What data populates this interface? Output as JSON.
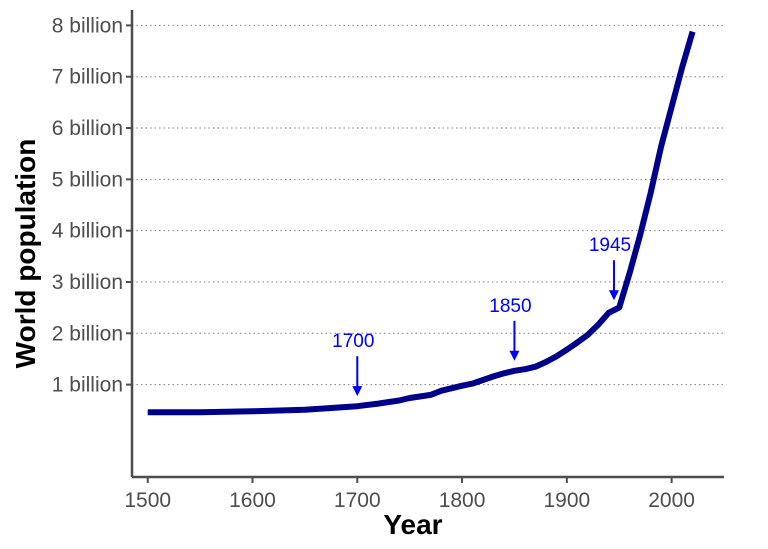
{
  "chart_data": {
    "type": "line",
    "title": "",
    "xlabel": "Year",
    "ylabel": "World population",
    "xlim": [
      1485,
      2050
    ],
    "ylim": [
      -0.8,
      8.3
    ],
    "x_ticks": [
      1500,
      1600,
      1700,
      1800,
      1900,
      2000
    ],
    "y_ticks": [
      1,
      2,
      3,
      4,
      5,
      6,
      7,
      8
    ],
    "y_tick_labels": [
      "1 billion",
      "2 billion",
      "3 billion",
      "4 billion",
      "5 billion",
      "6 billion",
      "7 billion",
      "8 billion"
    ],
    "grid": {
      "horizontal": true,
      "style": "dotted",
      "vertical": false
    },
    "series": [
      {
        "color": "#00008b",
        "points": [
          [
            1500,
            0.46
          ],
          [
            1550,
            0.46
          ],
          [
            1600,
            0.48
          ],
          [
            1650,
            0.51
          ],
          [
            1700,
            0.58
          ],
          [
            1720,
            0.63
          ],
          [
            1740,
            0.69
          ],
          [
            1750,
            0.74
          ],
          [
            1770,
            0.8
          ],
          [
            1780,
            0.88
          ],
          [
            1800,
            0.98
          ],
          [
            1810,
            1.02
          ],
          [
            1820,
            1.09
          ],
          [
            1830,
            1.16
          ],
          [
            1840,
            1.22
          ],
          [
            1850,
            1.27
          ],
          [
            1860,
            1.3
          ],
          [
            1870,
            1.35
          ],
          [
            1880,
            1.44
          ],
          [
            1890,
            1.55
          ],
          [
            1900,
            1.68
          ],
          [
            1910,
            1.82
          ],
          [
            1920,
            1.97
          ],
          [
            1930,
            2.17
          ],
          [
            1940,
            2.4
          ],
          [
            1950,
            2.5
          ],
          [
            1960,
            3.18
          ],
          [
            1970,
            3.92
          ],
          [
            1980,
            4.74
          ],
          [
            1990,
            5.64
          ],
          [
            2000,
            6.41
          ],
          [
            2010,
            7.18
          ],
          [
            2020,
            7.88
          ]
        ]
      }
    ],
    "annotations": [
      {
        "label": "1700",
        "x": 1700,
        "value": 0.58,
        "color": "#0000ff"
      },
      {
        "label": "1850",
        "x": 1850,
        "value": 1.27,
        "color": "#0000ff"
      },
      {
        "label": "1945",
        "x": 1945,
        "value": 2.45,
        "color": "#0000ff"
      }
    ]
  }
}
